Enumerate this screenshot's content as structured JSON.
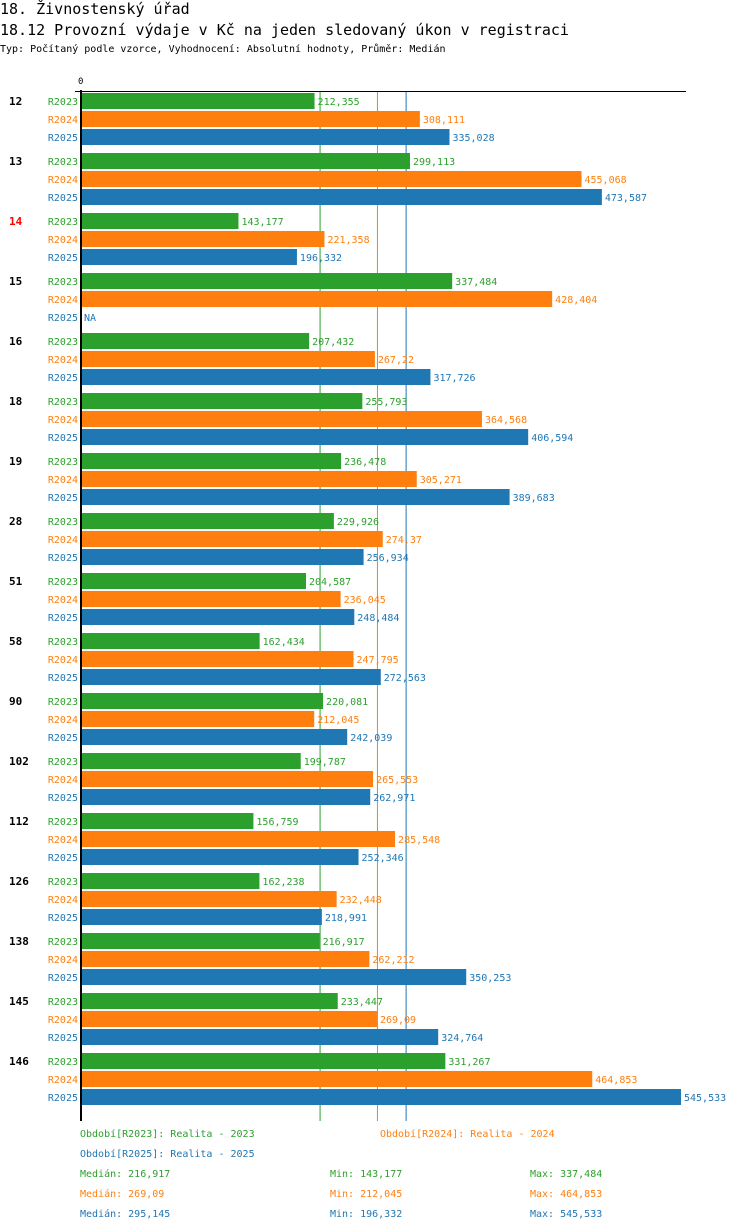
{
  "header": {
    "title": "18. Živnostenský úřad",
    "subtitle": "18.12 Provozní výdaje v Kč na jeden sledovaný úkon v registraci",
    "meta": "Typ: Počítaný podle vzorce, Vyhodnocení: Absolutní hodnoty, Průměr: Medián"
  },
  "colors": {
    "R2023": "#2ca02c",
    "R2024": "#ff7f0e",
    "R2025": "#1f77b4",
    "highlight_category": "#ff0000",
    "axis": "#000000"
  },
  "chart_data": {
    "type": "bar",
    "orientation": "horizontal",
    "title": "18.12 Provozní výdaje v Kč na jeden sledovaný úkon v registraci",
    "xlabel": "",
    "ylabel": "",
    "x_tick_labels": [
      "0"
    ],
    "xlim": [
      0,
      545.533
    ],
    "grid": false,
    "legend_position": "bottom",
    "categories": [
      "12",
      "13",
      "14",
      "15",
      "16",
      "18",
      "19",
      "28",
      "51",
      "58",
      "90",
      "102",
      "112",
      "126",
      "138",
      "145",
      "146"
    ],
    "highlighted_category": "14",
    "series": [
      {
        "name": "R2023",
        "label_texts": [
          "212,355",
          "299,113",
          "143,177",
          "337,484",
          "207,432",
          "255,793",
          "236,478",
          "229,926",
          "204,587",
          "162,434",
          "220,081",
          "199,787",
          "156,759",
          "162,238",
          "216,917",
          "233,447",
          "331,267"
        ],
        "values": [
          212.355,
          299.113,
          143.177,
          337.484,
          207.432,
          255.793,
          236.478,
          229.926,
          204.587,
          162.434,
          220.081,
          199.787,
          156.759,
          162.238,
          216.917,
          233.447,
          331.267
        ]
      },
      {
        "name": "R2024",
        "label_texts": [
          "308,111",
          "455,068",
          "221,358",
          "428,404",
          "267,22",
          "364,568",
          "305,271",
          "274,37",
          "236,045",
          "247,795",
          "212,045",
          "265,553",
          "285,548",
          "232,448",
          "262,212",
          "269,09",
          "464,853"
        ],
        "values": [
          308.111,
          455.068,
          221.358,
          428.404,
          267.22,
          364.568,
          305.271,
          274.37,
          236.045,
          247.795,
          212.045,
          265.553,
          285.548,
          232.448,
          262.212,
          269.09,
          464.853
        ]
      },
      {
        "name": "R2025",
        "label_texts": [
          "335,028",
          "473,587",
          "196,332",
          "NA",
          "317,726",
          "406,594",
          "389,683",
          "256,934",
          "248,484",
          "272,563",
          "242,039",
          "262,971",
          "252,346",
          "218,991",
          "350,253",
          "324,764",
          "545,533"
        ],
        "values": [
          335.028,
          473.587,
          196.332,
          null,
          317.726,
          406.594,
          389.683,
          256.934,
          248.484,
          272.563,
          242.039,
          262.971,
          252.346,
          218.991,
          350.253,
          324.764,
          545.533
        ]
      }
    ],
    "reference_lines": [
      {
        "series": "R2023",
        "type": "median",
        "value": 216.917
      },
      {
        "series": "R2024",
        "type": "median",
        "value": 269.09
      },
      {
        "series": "R2025",
        "type": "median",
        "value": 295.145
      }
    ]
  },
  "legend": {
    "periods": [
      {
        "key": "R2023",
        "text": "Období[R2023]: Realita - 2023"
      },
      {
        "key": "R2024",
        "text": "Období[R2024]: Realita - 2024"
      },
      {
        "key": "R2025",
        "text": "Období[R2025]: Realita - 2025"
      }
    ],
    "stats": [
      {
        "key": "R2023",
        "median": "Medián: 216,917",
        "min": "Min: 143,177",
        "max": "Max: 337,484"
      },
      {
        "key": "R2024",
        "median": "Medián: 269,09",
        "min": "Min: 212,045",
        "max": "Max: 464,853"
      },
      {
        "key": "R2025",
        "median": "Medián: 295,145",
        "min": "Min: 196,332",
        "max": "Max: 545,533"
      }
    ]
  }
}
